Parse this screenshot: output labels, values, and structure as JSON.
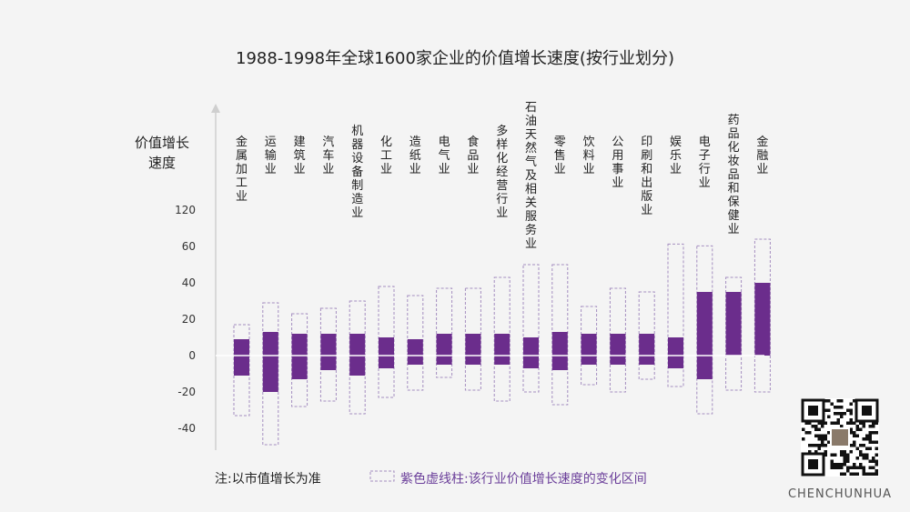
{
  "chart_data": {
    "type": "bar",
    "title": "1988-1998年全球1600家企业的价值增长速度(按行业划分)",
    "ylabel_lines": [
      "价值增长",
      "速度"
    ],
    "y_ticks": [
      {
        "label": "120"
      },
      {
        "label": "60"
      },
      {
        "label": "40"
      },
      {
        "label": "20"
      },
      {
        "label": "0"
      },
      {
        "label": "-20"
      },
      {
        "label": "-40"
      }
    ],
    "y_tick_values": [
      120,
      60,
      40,
      20,
      0,
      -20,
      -40
    ],
    "categories": [
      "金属加工业",
      "运输业",
      "建筑业",
      "汽车业",
      "机器设备制造业",
      "化工业",
      "造纸业",
      "电气业",
      "食品业",
      "多样化经营行业",
      "石油天然气及相关服务业",
      "零售业",
      "饮料业",
      "公用事业",
      "印刷和出版业",
      "娱乐业",
      "电子行业",
      "药品化妆品和保健业",
      "金融业"
    ],
    "series": [
      {
        "name": "价值增长速度",
        "color": "#6b2d8c",
        "low": [
          -11,
          -20,
          -13,
          -8,
          -11,
          -7,
          -5,
          -5,
          -5,
          -5,
          -7,
          -8,
          -5,
          -5,
          -5,
          -7,
          -13,
          0,
          0
        ],
        "high": [
          9,
          13,
          12,
          12,
          12,
          10,
          9,
          12,
          12,
          12,
          10,
          13,
          12,
          12,
          12,
          10,
          35,
          35,
          40
        ]
      },
      {
        "name": "紫色虚线柱:该行业价值增长速度的变化区间",
        "color": "#a58ec0",
        "low": [
          -33,
          -49,
          -28,
          -25,
          -32,
          -23,
          -19,
          -12,
          -19,
          -25,
          -20,
          -27,
          -16,
          -20,
          -13,
          -17,
          -32,
          -19,
          -20
        ],
        "high": [
          17,
          29,
          23,
          26,
          30,
          38,
          33,
          37,
          37,
          43,
          50,
          50,
          27,
          37,
          35,
          64,
          61,
          43,
          72
        ]
      }
    ],
    "note": "注:以市值增长为准",
    "legend_label": "紫色虚线柱:该行业价值增长速度的变化区间"
  },
  "brand": "CHENCHUNHUA",
  "qr_icon": "qr-code-icon"
}
